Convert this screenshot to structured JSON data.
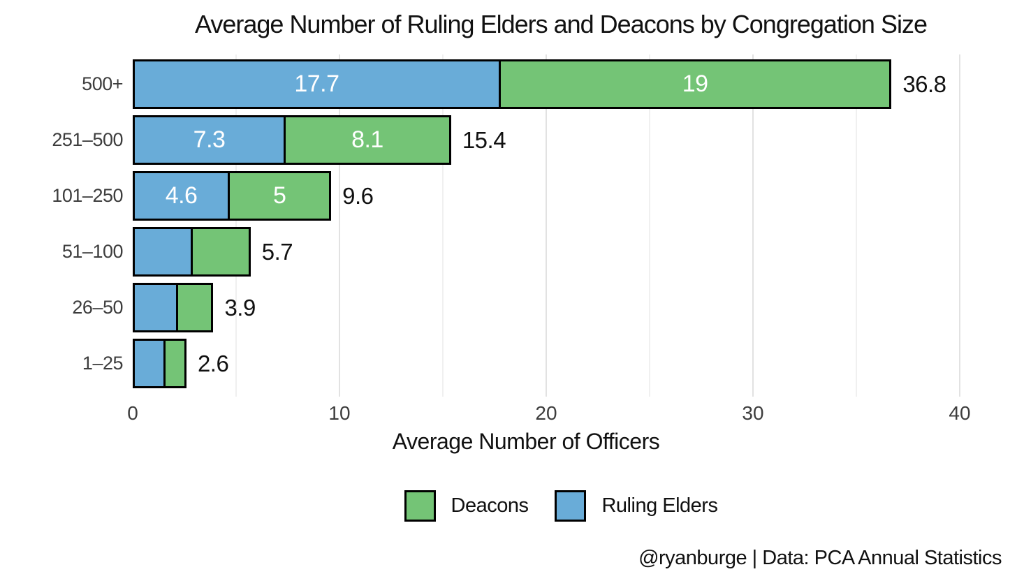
{
  "chart_data": {
    "type": "bar",
    "orientation": "horizontal",
    "stacked": true,
    "title": "Average Number of Ruling Elders and Deacons by Congregation Size",
    "xlabel": "Average Number of Officers",
    "categories": [
      "500+",
      "251–500",
      "101–250",
      "51–100",
      "26–50",
      "1–25"
    ],
    "series": [
      {
        "name": "Ruling Elders",
        "color": "#69acd8",
        "values": [
          17.7,
          7.3,
          4.6,
          2.8,
          2.1,
          1.5
        ],
        "bar_labels": [
          "17.7",
          "7.3",
          "4.6",
          "",
          "",
          ""
        ]
      },
      {
        "name": "Deacons",
        "color": "#74c476",
        "values": [
          19,
          8.1,
          5,
          2.9,
          1.8,
          1.1
        ],
        "bar_labels": [
          "19",
          "8.1",
          "5",
          "",
          "",
          ""
        ]
      }
    ],
    "totals": [
      "36.8",
      "15.4",
      "9.6",
      "5.7",
      "3.9",
      "2.6"
    ],
    "xlim": [
      0,
      40
    ],
    "xticks": [
      0,
      10,
      20,
      30,
      40
    ],
    "minor_ticks": [
      5,
      15,
      25,
      35
    ],
    "grid": true,
    "legend_position": "bottom",
    "legend": [
      {
        "label": "Deacons",
        "color": "#74c476"
      },
      {
        "label": "Ruling Elders",
        "color": "#69acd8"
      }
    ],
    "attribution": "@ryanburge | Data: PCA Annual Statistics",
    "bar_border_color": "#000000",
    "label_color_inside": "#ffffff",
    "label_color_outside": "#111111"
  }
}
